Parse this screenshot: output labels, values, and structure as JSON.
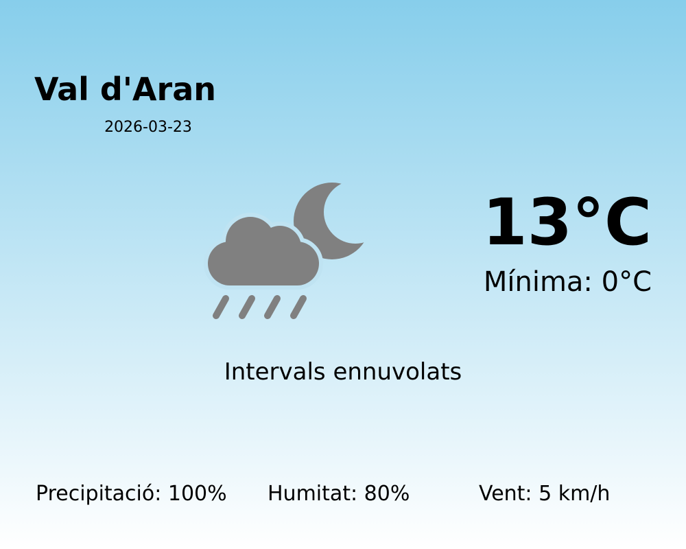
{
  "location": {
    "name": "Val d'Aran",
    "date": "2026-03-23"
  },
  "current": {
    "temperature": "13°C",
    "minimum": "Mínima: 0°C",
    "description": "Intervals ennuvolats",
    "icon": "cloud-rain-moon-icon",
    "icon_color": "#808080"
  },
  "stats": {
    "precipitation": "Precipitació: 100%",
    "humidity": "Humitat: 80%",
    "wind": "Vent: 5 km/h"
  },
  "colors": {
    "background_top": "#87ceeb",
    "background_bottom": "#ffffff"
  }
}
